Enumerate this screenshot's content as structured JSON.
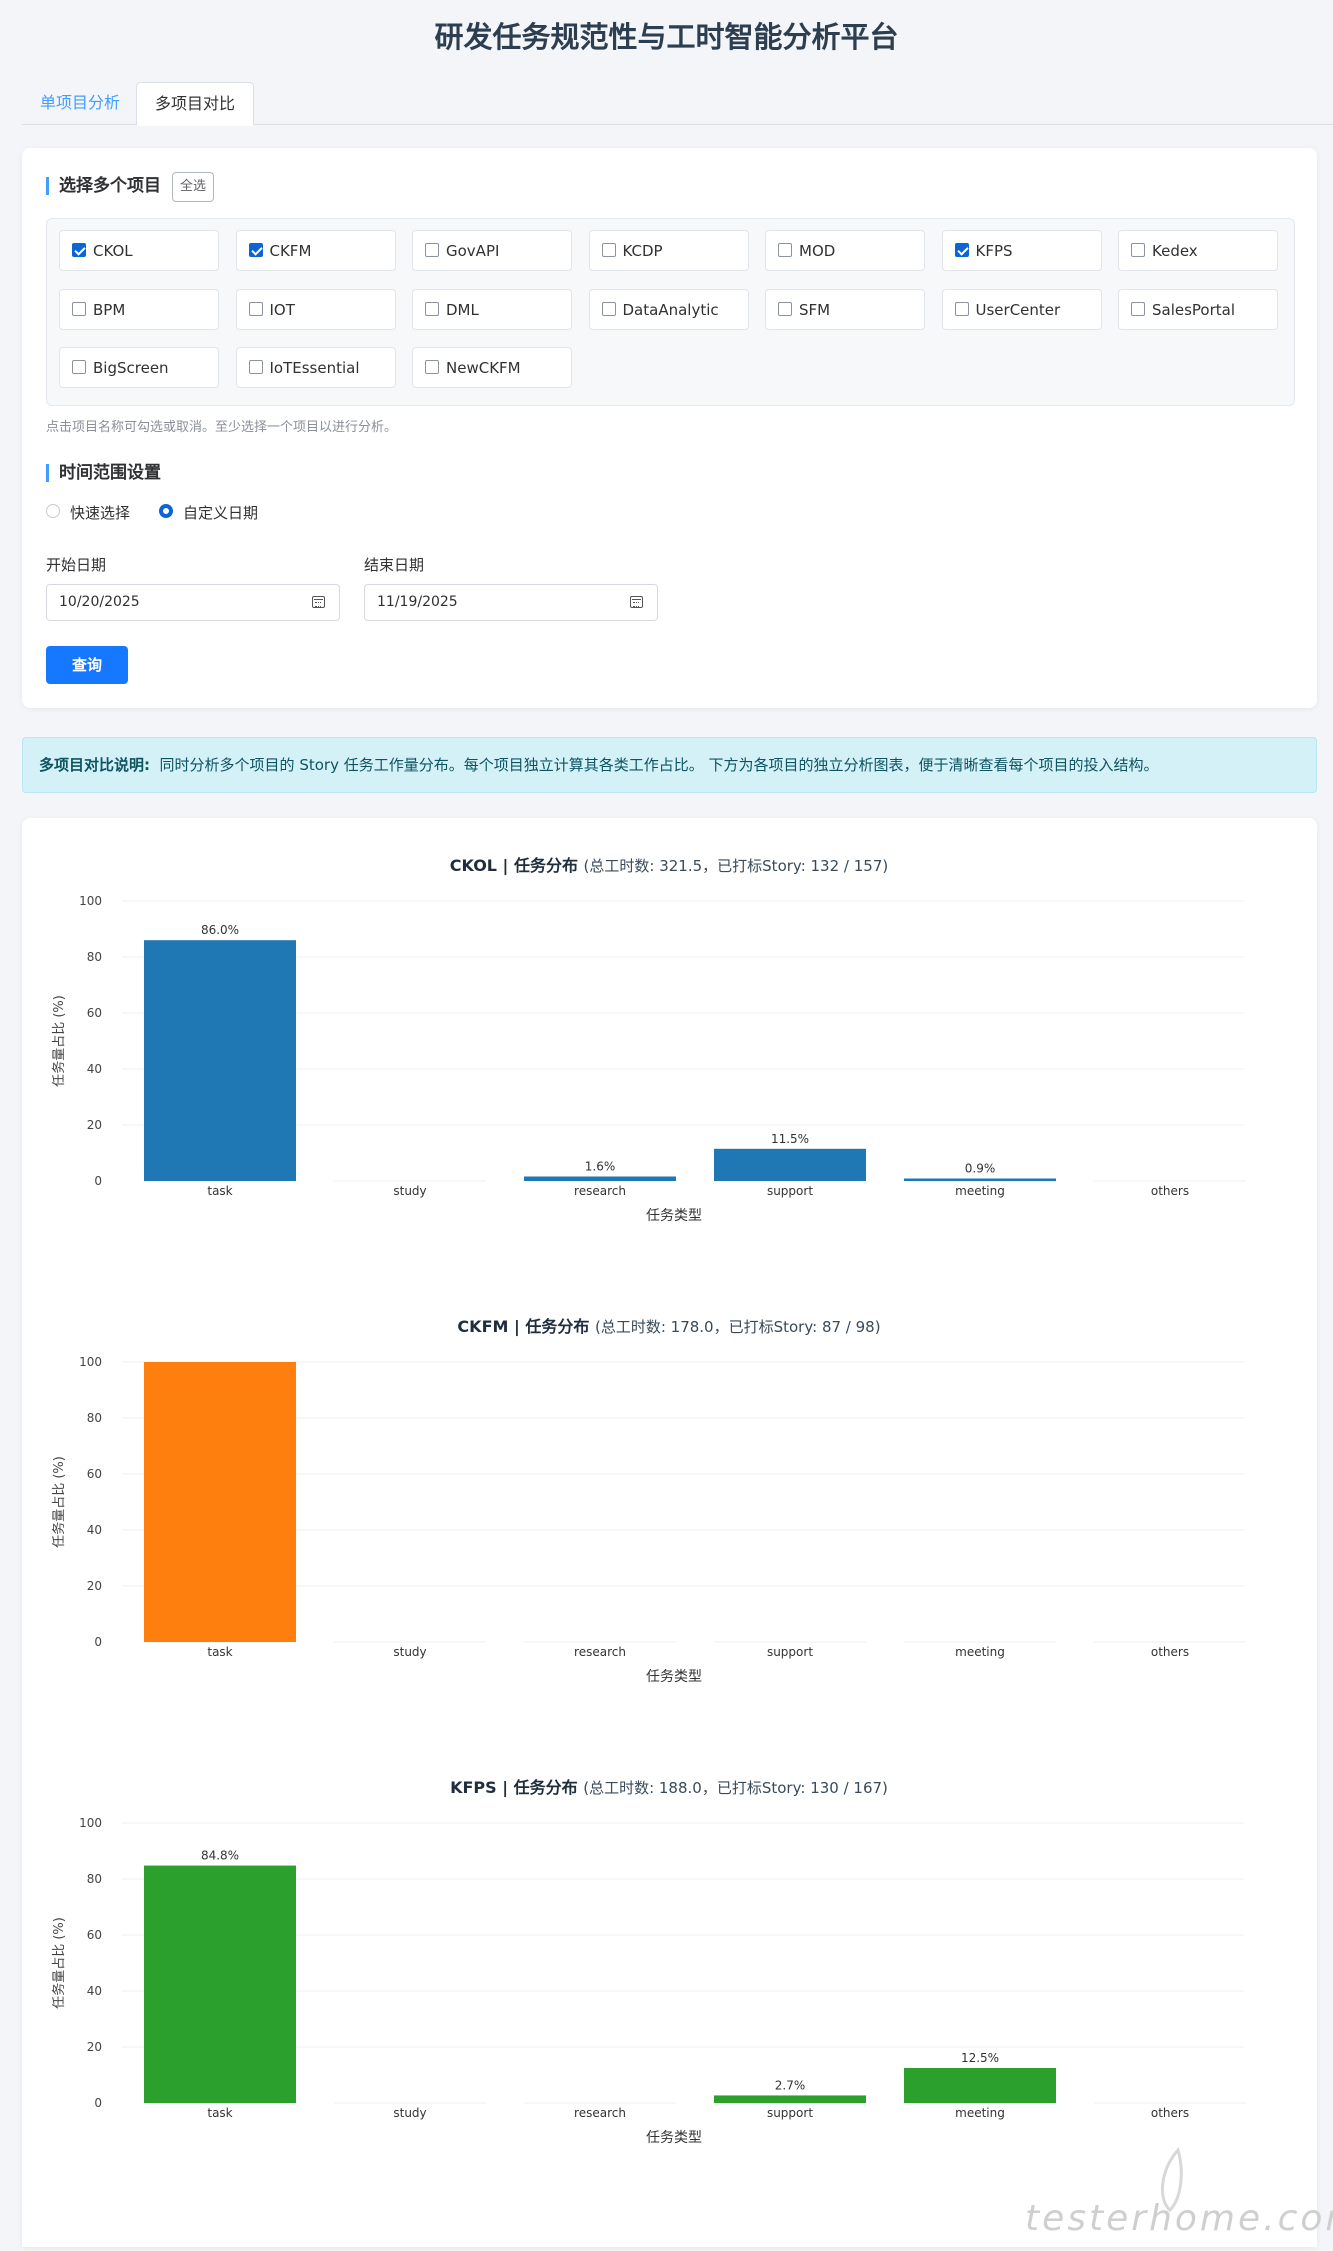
{
  "title": "研发任务规范性与工时智能分析平台",
  "tabs": [
    {
      "label": "单项目分析",
      "active": false
    },
    {
      "label": "多项目对比",
      "active": true
    }
  ],
  "project_section": {
    "title": "选择多个项目",
    "select_all": "全选",
    "projects": [
      {
        "name": "CKOL",
        "checked": true
      },
      {
        "name": "CKFM",
        "checked": true
      },
      {
        "name": "GovAPI",
        "checked": false
      },
      {
        "name": "KCDP",
        "checked": false
      },
      {
        "name": "MOD",
        "checked": false
      },
      {
        "name": "KFPS",
        "checked": true
      },
      {
        "name": "Kedex",
        "checked": false
      },
      {
        "name": "BPM",
        "checked": false
      },
      {
        "name": "IOT",
        "checked": false
      },
      {
        "name": "DML",
        "checked": false
      },
      {
        "name": "DataAnalytic",
        "checked": false
      },
      {
        "name": "SFM",
        "checked": false
      },
      {
        "name": "UserCenter",
        "checked": false
      },
      {
        "name": "SalesPortal",
        "checked": false
      },
      {
        "name": "BigScreen",
        "checked": false
      },
      {
        "name": "IoTEssential",
        "checked": false
      },
      {
        "name": "NewCKFM",
        "checked": false
      }
    ],
    "hint": "点击项目名称可勾选或取消。至少选择一个项目以进行分析。"
  },
  "time_section": {
    "title": "时间范围设置",
    "options": [
      {
        "label": "快速选择",
        "selected": false
      },
      {
        "label": "自定义日期",
        "selected": true
      }
    ],
    "start_label": "开始日期",
    "start_value": "10/20/2025",
    "end_label": "结束日期",
    "end_value": "11/19/2025",
    "query_button": "查询"
  },
  "info": {
    "bold": "多项目对比说明:",
    "text": "同时分析多个项目的 Story 任务工作量分布。每个项目独立计算其各类工作占比。 下方为各项目的独立分析图表，便于清晰查看每个项目的投入结构。"
  },
  "colors": {
    "accent": "#1677ff",
    "ckol": "#1f77b4",
    "ckfm": "#ff7f0e",
    "kfps": "#2ca02c"
  },
  "watermark": "testerhome.com",
  "chart_data": [
    {
      "type": "bar",
      "title_bold": "CKOL | 任务分布",
      "title_note": "(总工时数: 321.5，已打标Story: 132 / 157)",
      "categories": [
        "task",
        "study",
        "research",
        "support",
        "meeting",
        "others"
      ],
      "values": [
        86.0,
        0,
        1.6,
        11.5,
        0.9,
        0
      ],
      "labels": [
        "86.0%",
        "",
        "1.6%",
        "11.5%",
        "0.9%",
        ""
      ],
      "xlabel": "任务类型",
      "ylabel": "任务量占比 (%)",
      "ylim": [
        0,
        100
      ],
      "yticks": [
        0,
        20,
        40,
        60,
        80,
        100
      ],
      "color": "#1f77b4",
      "grid": true
    },
    {
      "type": "bar",
      "title_bold": "CKFM | 任务分布",
      "title_note": "(总工时数: 178.0，已打标Story: 87 / 98)",
      "categories": [
        "task",
        "study",
        "research",
        "support",
        "meeting",
        "others"
      ],
      "values": [
        100,
        0,
        0,
        0,
        0,
        0
      ],
      "labels": [
        "",
        "",
        "",
        "",
        "",
        ""
      ],
      "xlabel": "任务类型",
      "ylabel": "任务量占比 (%)",
      "ylim": [
        0,
        100
      ],
      "yticks": [
        0,
        20,
        40,
        60,
        80,
        100
      ],
      "color": "#ff7f0e",
      "grid": true
    },
    {
      "type": "bar",
      "title_bold": "KFPS | 任务分布",
      "title_note": "(总工时数: 188.0，已打标Story: 130 / 167)",
      "categories": [
        "task",
        "study",
        "research",
        "support",
        "meeting",
        "others"
      ],
      "values": [
        84.8,
        0,
        0,
        2.7,
        12.5,
        0
      ],
      "labels": [
        "84.8%",
        "",
        "",
        "2.7%",
        "12.5%",
        ""
      ],
      "xlabel": "任务类型",
      "ylabel": "任务量占比 (%)",
      "ylim": [
        0,
        100
      ],
      "yticks": [
        0,
        20,
        40,
        60,
        80,
        100
      ],
      "color": "#2ca02c",
      "grid": true
    }
  ]
}
